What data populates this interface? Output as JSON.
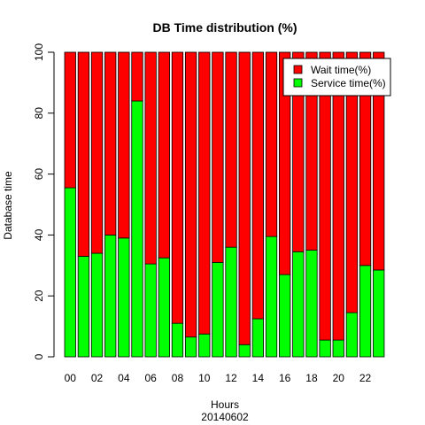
{
  "chart_data": {
    "type": "bar",
    "stacked": true,
    "title": "DB Time distribution (%)",
    "xlabel": "Hours",
    "xsublabel": "20140602",
    "ylabel": "Database time",
    "ylim": [
      0,
      100
    ],
    "yticks": [
      0,
      20,
      40,
      60,
      80,
      100
    ],
    "categories": [
      "00",
      "01",
      "02",
      "03",
      "04",
      "05",
      "06",
      "07",
      "08",
      "09",
      "10",
      "11",
      "12",
      "13",
      "14",
      "15",
      "16",
      "17",
      "18",
      "19",
      "20",
      "21",
      "22",
      "23"
    ],
    "shown_tick_labels": [
      "00",
      "02",
      "04",
      "06",
      "08",
      "10",
      "12",
      "14",
      "16",
      "18",
      "20",
      "22"
    ],
    "series": [
      {
        "name": "Service time(%)",
        "color": "#00ff00",
        "values": [
          55.5,
          33,
          34,
          40,
          39,
          84,
          30.5,
          32.5,
          11,
          6.5,
          7.5,
          31,
          36,
          4,
          12.5,
          39.5,
          27,
          34.5,
          35,
          5.5,
          5.5,
          14.5,
          30,
          28.5
        ]
      },
      {
        "name": "Wait time(%)",
        "color": "#ff0000",
        "values": [
          44.5,
          67,
          66,
          60,
          61,
          16,
          69.5,
          67.5,
          89,
          93.5,
          92.5,
          69,
          64,
          96,
          87.5,
          60.5,
          73,
          65.5,
          65,
          94.5,
          94.5,
          85.5,
          70,
          71.5
        ]
      }
    ],
    "legend": {
      "placement": "top-right",
      "entries": [
        {
          "label": "Wait time(%)",
          "color": "#ff0000"
        },
        {
          "label": "Service time(%)",
          "color": "#00ff00"
        }
      ]
    },
    "grid": false
  }
}
